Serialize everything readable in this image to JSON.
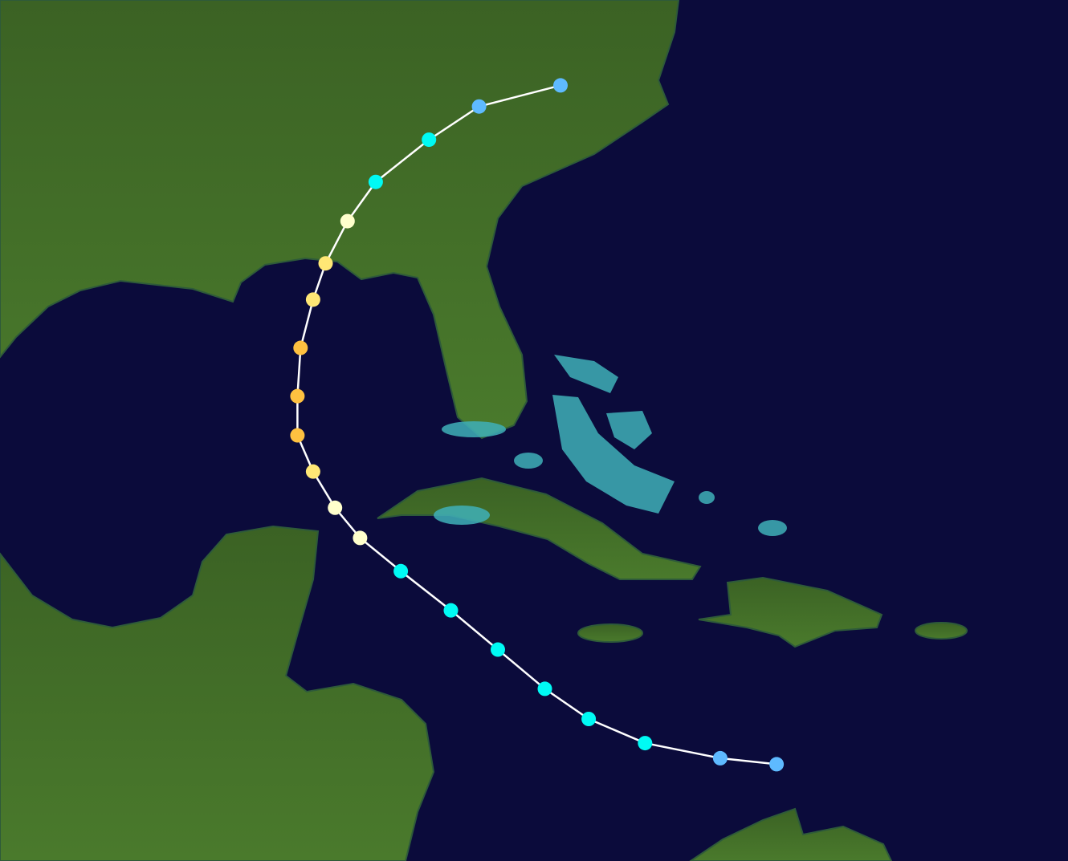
{
  "map": {
    "ocean_color": "#0b0b3b",
    "land_color": "#3f6b26",
    "shallow_color": "#3fb0b8",
    "track_line_color": "#ffffff",
    "category_colors": {
      "TD": "#5ebaff",
      "TS": "#00faf4",
      "C1": "#ffffcc",
      "C2": "#ffe775",
      "C3": "#ffc140"
    },
    "track": [
      {
        "lat": 13.6,
        "lon": -72.0,
        "cat": "TD"
      },
      {
        "lat": 13.8,
        "lon": -73.8,
        "cat": "TD"
      },
      {
        "lat": 14.3,
        "lon": -76.2,
        "cat": "TS"
      },
      {
        "lat": 15.1,
        "lon": -78.0,
        "cat": "TS"
      },
      {
        "lat": 16.1,
        "lon": -79.4,
        "cat": "TS"
      },
      {
        "lat": 17.4,
        "lon": -80.9,
        "cat": "TS"
      },
      {
        "lat": 18.7,
        "lon": -82.4,
        "cat": "TS"
      },
      {
        "lat": 20.0,
        "lon": -84.0,
        "cat": "TS"
      },
      {
        "lat": 21.1,
        "lon": -85.3,
        "cat": "C1"
      },
      {
        "lat": 22.1,
        "lon": -86.1,
        "cat": "C1"
      },
      {
        "lat": 23.3,
        "lon": -86.8,
        "cat": "C2"
      },
      {
        "lat": 24.5,
        "lon": -87.3,
        "cat": "C3"
      },
      {
        "lat": 25.8,
        "lon": -87.3,
        "cat": "C3"
      },
      {
        "lat": 27.4,
        "lon": -87.2,
        "cat": "C3"
      },
      {
        "lat": 29.0,
        "lon": -86.8,
        "cat": "C2"
      },
      {
        "lat": 30.2,
        "lon": -86.4,
        "cat": "C2"
      },
      {
        "lat": 31.6,
        "lon": -85.7,
        "cat": "C1"
      },
      {
        "lat": 32.9,
        "lon": -84.8,
        "cat": "TS"
      },
      {
        "lat": 34.3,
        "lon": -83.1,
        "cat": "TS"
      },
      {
        "lat": 35.4,
        "lon": -81.5,
        "cat": "TD"
      },
      {
        "lat": 36.1,
        "lon": -78.9,
        "cat": "TD"
      }
    ]
  }
}
